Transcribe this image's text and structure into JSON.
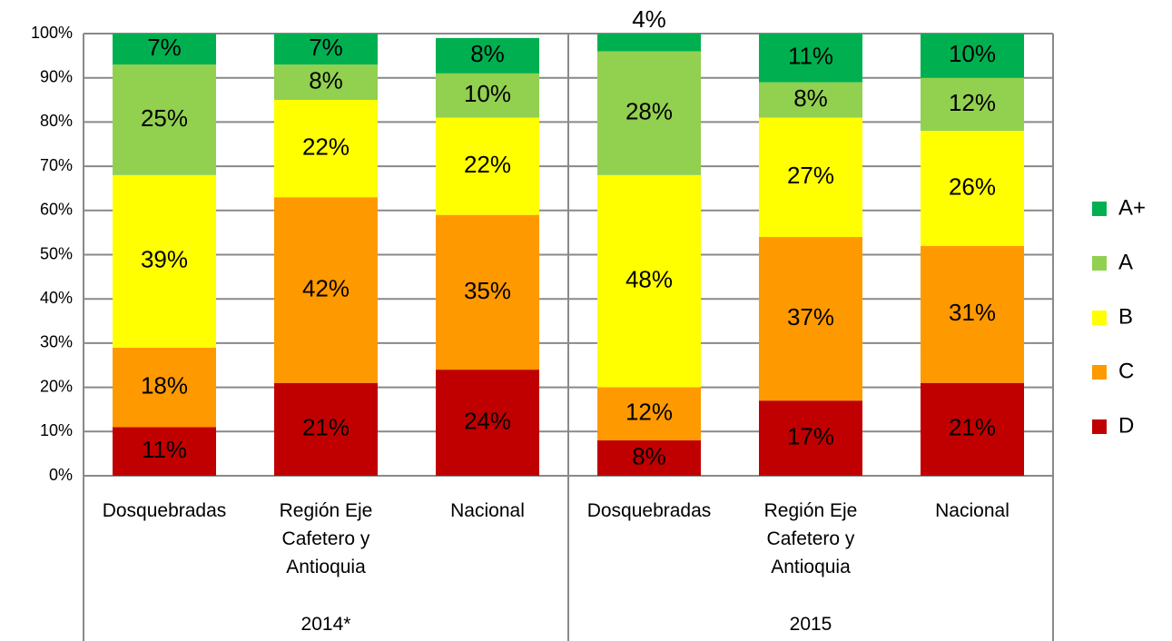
{
  "chart_data": {
    "type": "stacked_bar",
    "groups": [
      {
        "name": "2014*",
        "categories": [
          "Dosquebradas",
          "Región Eje Cafetero y Antioquia",
          "Nacional"
        ]
      },
      {
        "name": "2015",
        "categories": [
          "Dosquebradas",
          "Región Eje Cafetero y Antioquia",
          "Nacional"
        ]
      }
    ],
    "series": [
      {
        "name": "D",
        "color": "#c00000",
        "values": [
          11,
          21,
          24,
          8,
          17,
          21
        ],
        "value_labels": [
          "11%",
          "21%",
          "24%",
          "8%",
          "17%",
          "21%"
        ]
      },
      {
        "name": "C",
        "color": "#ff9900",
        "values": [
          18,
          42,
          35,
          12,
          37,
          31
        ],
        "value_labels": [
          "18%",
          "42%",
          "35%",
          "12%",
          "37%",
          "31%"
        ]
      },
      {
        "name": "B",
        "color": "#ffff00",
        "values": [
          39,
          22,
          22,
          48,
          27,
          26
        ],
        "value_labels": [
          "39%",
          "22%",
          "22%",
          "48%",
          "27%",
          "26%"
        ]
      },
      {
        "name": "A",
        "color": "#92d050",
        "values": [
          25,
          8,
          10,
          28,
          8,
          12
        ],
        "value_labels": [
          "25%",
          "8%",
          "10%",
          "28%",
          "8%",
          "12%"
        ]
      },
      {
        "name": "A+",
        "color": "#00b050",
        "values": [
          7,
          7,
          8,
          4,
          11,
          10
        ],
        "value_labels": [
          "7%",
          "7%",
          "8%",
          "4%",
          "11%",
          "10%"
        ]
      }
    ],
    "ylim": [
      0,
      100
    ],
    "yticks": [
      {
        "value": 0,
        "label": "0%"
      },
      {
        "value": 10,
        "label": "10%"
      },
      {
        "value": 20,
        "label": "20%"
      },
      {
        "value": 30,
        "label": "30%"
      },
      {
        "value": 40,
        "label": "40%"
      },
      {
        "value": 50,
        "label": "50%"
      },
      {
        "value": 60,
        "label": "60%"
      },
      {
        "value": 70,
        "label": "70%"
      },
      {
        "value": 80,
        "label": "80%"
      },
      {
        "value": 90,
        "label": "90%"
      },
      {
        "value": 100,
        "label": "100%"
      }
    ],
    "grid": true,
    "legend": "right"
  }
}
